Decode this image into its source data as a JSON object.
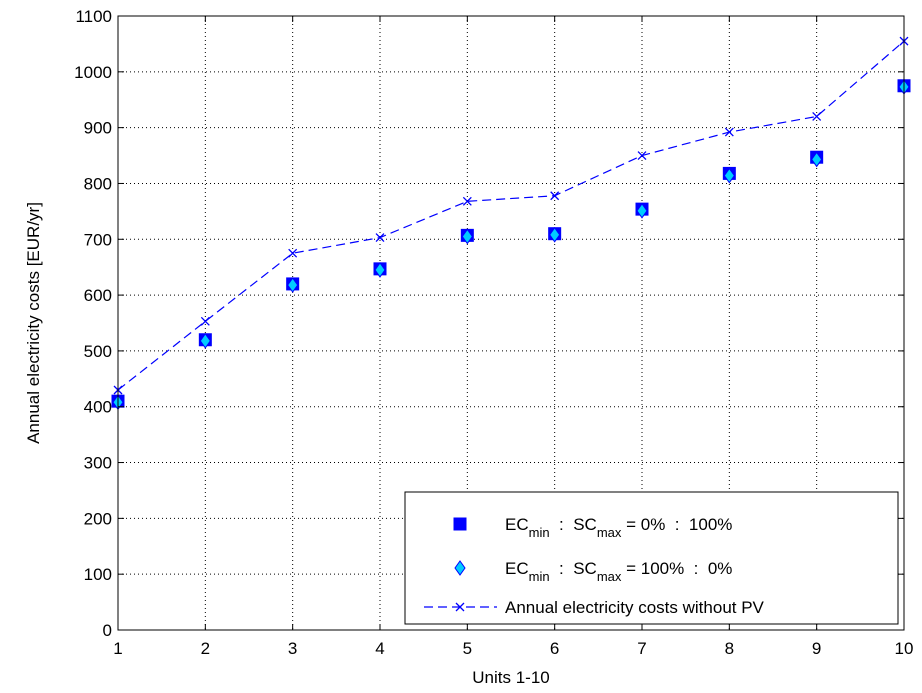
{
  "chart_data": {
    "type": "line",
    "xlabel": "Units 1-10",
    "ylabel": "Annual electricity costs [EUR/yr]",
    "xlim": [
      1,
      10
    ],
    "ylim": [
      0,
      1100
    ],
    "x_ticks": [
      1,
      2,
      3,
      4,
      5,
      6,
      7,
      8,
      9,
      10
    ],
    "y_ticks": [
      0,
      100,
      200,
      300,
      400,
      500,
      600,
      700,
      800,
      900,
      1000,
      1100
    ],
    "grid": true,
    "legend_position": "bottom-right",
    "x": [
      1,
      2,
      3,
      4,
      5,
      6,
      7,
      8,
      9,
      10
    ],
    "series": [
      {
        "name": "EC_min : SC_max = 0% : 100%",
        "legend": {
          "pre": "EC",
          "sub1": "min",
          "mid": "  :  SC",
          "sub2": "max",
          "post": " = 0%  :  100%"
        },
        "marker": "square",
        "color": "#0000ff",
        "values": [
          410,
          520,
          620,
          647,
          707,
          710,
          754,
          818,
          847,
          975
        ]
      },
      {
        "name": "EC_min : SC_max = 100% : 0%",
        "legend": {
          "pre": "EC",
          "sub1": "min",
          "mid": "  :  SC",
          "sub2": "max",
          "post": " = 100%  :  0%"
        },
        "marker": "diamond",
        "color": "#00ccff",
        "values": [
          408,
          518,
          618,
          645,
          705,
          708,
          751,
          814,
          843,
          973
        ]
      },
      {
        "name": "Annual electricity costs without PV",
        "legend": {
          "pre": "Annual electricity costs without PV"
        },
        "marker": "x",
        "line": "dashed",
        "color": "#0000ff",
        "values": [
          430,
          553,
          675,
          703,
          768,
          778,
          850,
          892,
          920,
          1055
        ]
      }
    ]
  }
}
